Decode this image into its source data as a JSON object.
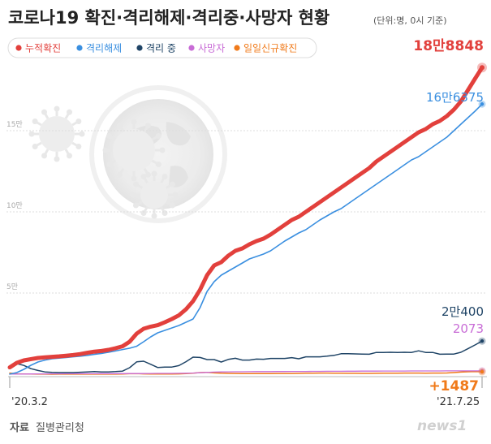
{
  "title": {
    "main": "코로나19 확진·격리해제·격리중·사망자 현황",
    "unit_note": "(단위:명, 0시 기준)"
  },
  "source": {
    "label": "자료",
    "name": "질병관리청"
  },
  "watermark": "news1",
  "colors": {
    "confirmed": "#e2403c",
    "released": "#3a8fe0",
    "isolating": "#1f4466",
    "deaths": "#c86cd6",
    "daily_new": "#f07a1a",
    "grid": "#dddddd",
    "tick": "#aaaaaa",
    "background": "#ffffff"
  },
  "chart_data": {
    "type": "line",
    "title": "코로나19 확진·격리해제·격리중·사망자 현황",
    "unit": "(단위:명, 0시 기준)",
    "x_start_label": "'20.3.2",
    "x_end_label": "'21.7.25",
    "y_ticks": [
      {
        "value": 50000,
        "label": "5만"
      },
      {
        "value": 100000,
        "label": "10만"
      },
      {
        "value": 150000,
        "label": "15만"
      }
    ],
    "ylim": [
      0,
      200000
    ],
    "grid": true,
    "legend_position": "top-left",
    "x_points": [
      "'20.3.2",
      "",
      "",
      "",
      "",
      "",
      "",
      "",
      "",
      "",
      "",
      "",
      "",
      "",
      "",
      "",
      "",
      "",
      "",
      "",
      "",
      "",
      "",
      "",
      "",
      "",
      "",
      "",
      "",
      "",
      "",
      "",
      "",
      "",
      "",
      "",
      "",
      "",
      "",
      "",
      "",
      "",
      "",
      "",
      "",
      "",
      "",
      "",
      "",
      "",
      "",
      "",
      "",
      "",
      "",
      "",
      "",
      "",
      "",
      "",
      "",
      "",
      "",
      "",
      "",
      "",
      "",
      "'21.7.25"
    ],
    "series": [
      {
        "name": "누적확진",
        "key": "confirmed",
        "end_label": "18만8848",
        "values": [
          4200,
          7000,
          8500,
          9300,
          10000,
          10400,
          10700,
          11000,
          11400,
          11800,
          12400,
          13200,
          13900,
          14300,
          15000,
          16000,
          17200,
          20000,
          25000,
          28000,
          29300,
          30200,
          32000,
          34000,
          36300,
          40000,
          45000,
          52000,
          61000,
          67000,
          69000,
          73000,
          76000,
          77500,
          80000,
          82000,
          83500,
          86000,
          89000,
          92000,
          95000,
          97000,
          100000,
          103000,
          106000,
          109000,
          112000,
          115000,
          118000,
          121000,
          124000,
          127000,
          131000,
          134000,
          137000,
          140000,
          143000,
          146000,
          149000,
          151000,
          154000,
          156000,
          159000,
          163000,
          168000,
          175000,
          182000,
          188848
        ]
      },
      {
        "name": "격리해제",
        "key": "released",
        "end_label": "16만6375",
        "values": [
          30,
          1000,
          3000,
          5500,
          7500,
          8700,
          9500,
          9900,
          10300,
          10700,
          11100,
          11600,
          12200,
          12800,
          13500,
          14300,
          15200,
          16000,
          17200,
          20000,
          23000,
          25500,
          27000,
          28500,
          30000,
          32000,
          34000,
          41000,
          51000,
          57000,
          61000,
          63500,
          66000,
          68500,
          71000,
          72500,
          74000,
          76000,
          79000,
          82000,
          84500,
          87000,
          89000,
          92000,
          95000,
          97500,
          100000,
          102000,
          105000,
          108000,
          111000,
          114000,
          117000,
          120000,
          123000,
          126000,
          129000,
          132000,
          134000,
          137000,
          140000,
          143000,
          146000,
          150000,
          154000,
          158000,
          162000,
          166375
        ]
      },
      {
        "name": "격리 중",
        "key": "isolating",
        "end_label": "2만400",
        "values": [
          4100,
          6500,
          5400,
          3400,
          2300,
          1400,
          1100,
          1000,
          1000,
          1000,
          1200,
          1400,
          1600,
          1400,
          1400,
          1600,
          1900,
          4000,
          7600,
          8000,
          6100,
          4100,
          4400,
          4400,
          5300,
          7700,
          10500,
          10300,
          9000,
          9000,
          7500,
          9100,
          9800,
          8700,
          8700,
          9300,
          9200,
          9700,
          9700,
          9700,
          10200,
          9500,
          10700,
          10700,
          10700,
          11100,
          11600,
          12600,
          12600,
          12500,
          12400,
          12300,
          13400,
          13400,
          13500,
          13400,
          13500,
          13400,
          14400,
          13400,
          13400,
          12300,
          12400,
          12400,
          13500,
          15700,
          18000,
          20400
        ]
      },
      {
        "name": "사망자",
        "key": "deaths",
        "end_label": "2073",
        "values": [
          28,
          60,
          100,
          150,
          190,
          220,
          250,
          270,
          280,
          290,
          300,
          310,
          320,
          330,
          340,
          350,
          360,
          380,
          400,
          420,
          450,
          480,
          500,
          520,
          550,
          600,
          700,
          900,
          1100,
          1300,
          1400,
          1450,
          1500,
          1520,
          1550,
          1580,
          1600,
          1620,
          1640,
          1660,
          1680,
          1700,
          1720,
          1740,
          1760,
          1780,
          1800,
          1820,
          1840,
          1860,
          1880,
          1900,
          1920,
          1940,
          1950,
          1960,
          1970,
          1980,
          1990,
          2000,
          2010,
          2020,
          2030,
          2040,
          2050,
          2060,
          2065,
          2073
        ]
      },
      {
        "name": "일일신규확진",
        "key": "daily_new",
        "end_label": "+1487",
        "values": [
          686,
          200,
          100,
          100,
          50,
          30,
          20,
          30,
          40,
          50,
          60,
          50,
          40,
          60,
          50,
          60,
          80,
          300,
          400,
          200,
          100,
          100,
          120,
          130,
          200,
          400,
          600,
          1000,
          1100,
          800,
          600,
          500,
          450,
          400,
          400,
          400,
          350,
          400,
          450,
          450,
          450,
          500,
          600,
          650,
          700,
          700,
          650,
          600,
          550,
          550,
          500,
          500,
          550,
          600,
          600,
          650,
          700,
          700,
          700,
          650,
          700,
          700,
          750,
          1000,
          1300,
          1500,
          1600,
          1487
        ]
      }
    ]
  }
}
